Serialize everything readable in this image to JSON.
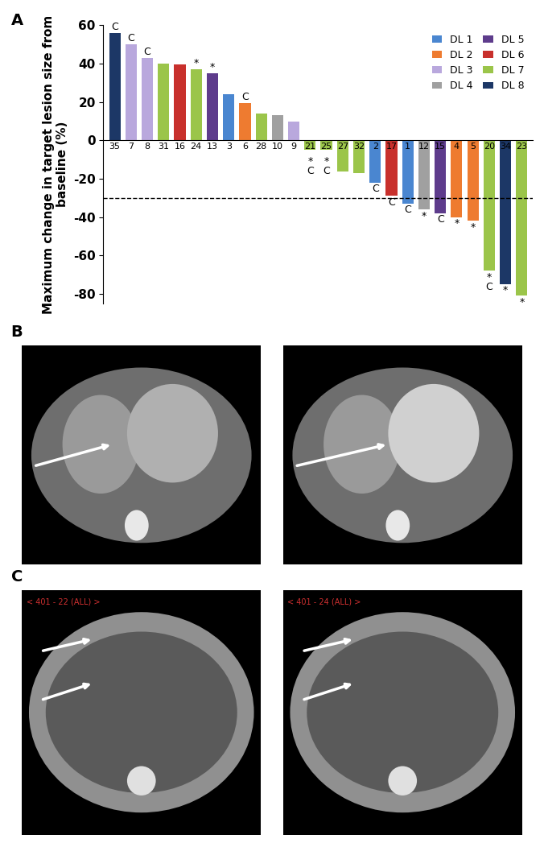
{
  "chart_data": {
    "type": "bar",
    "panel_label": "A",
    "y_label": "Maximum change in target lesion size from baseline (%)",
    "categories": [
      "35",
      "7",
      "8",
      "31",
      "16",
      "24",
      "13",
      "3",
      "6",
      "28",
      "10",
      "9",
      "21",
      "25",
      "27",
      "32",
      "2",
      "17",
      "1",
      "12",
      "15",
      "4",
      "5",
      "20",
      "34",
      "23"
    ],
    "series": [
      {
        "name": "DL 1",
        "color": "#4a86d0",
        "values": [
          null,
          null,
          null,
          null,
          null,
          null,
          null,
          24,
          null,
          null,
          null,
          null,
          null,
          null,
          null,
          null,
          -22,
          null,
          -33,
          null,
          null,
          null,
          null,
          null,
          null,
          null
        ]
      },
      {
        "name": "DL 2",
        "color": "#ee7b30",
        "values": [
          null,
          null,
          null,
          null,
          null,
          null,
          null,
          null,
          19.5,
          null,
          null,
          null,
          null,
          null,
          null,
          null,
          null,
          null,
          null,
          null,
          null,
          -40,
          -42,
          null,
          null,
          null
        ]
      },
      {
        "name": "DL 3",
        "color": "#b9a8dd",
        "values": [
          null,
          50,
          43,
          null,
          null,
          null,
          null,
          null,
          null,
          null,
          null,
          10,
          null,
          null,
          null,
          null,
          null,
          null,
          null,
          null,
          null,
          null,
          null,
          null,
          null,
          null
        ]
      },
      {
        "name": "DL 4",
        "color": "#a0a0a0",
        "values": [
          null,
          null,
          null,
          null,
          null,
          null,
          null,
          null,
          null,
          null,
          13,
          null,
          null,
          null,
          null,
          null,
          null,
          null,
          null,
          -36,
          null,
          null,
          null,
          null,
          null,
          null
        ]
      },
      {
        "name": "DL 5",
        "color": "#5e3c8c",
        "values": [
          null,
          null,
          null,
          null,
          null,
          null,
          35,
          null,
          null,
          null,
          null,
          null,
          null,
          null,
          null,
          null,
          null,
          null,
          null,
          null,
          -38,
          null,
          null,
          null,
          null,
          null
        ]
      },
      {
        "name": "DL 6",
        "color": "#c8302c",
        "values": [
          null,
          null,
          null,
          null,
          39.5,
          null,
          null,
          null,
          null,
          null,
          null,
          null,
          null,
          null,
          null,
          null,
          null,
          -29,
          null,
          null,
          null,
          null,
          null,
          null,
          null,
          null
        ]
      },
      {
        "name": "DL 7",
        "color": "#9bc54a",
        "values": [
          null,
          null,
          null,
          40,
          null,
          37,
          null,
          null,
          null,
          14,
          null,
          null,
          -5,
          -5,
          -16,
          -17,
          null,
          null,
          null,
          null,
          null,
          null,
          null,
          -68,
          null,
          -81
        ]
      },
      {
        "name": "DL 8",
        "color": "#1c3766",
        "values": [
          56,
          null,
          null,
          null,
          null,
          null,
          null,
          null,
          null,
          null,
          null,
          null,
          null,
          null,
          null,
          null,
          null,
          null,
          null,
          null,
          null,
          null,
          null,
          null,
          -75,
          null
        ]
      }
    ],
    "annotations": [
      [
        "C"
      ],
      [
        "C"
      ],
      [
        "C"
      ],
      null,
      null,
      [
        "*"
      ],
      [
        "*"
      ],
      null,
      [
        "C"
      ],
      null,
      null,
      null,
      [
        "*",
        "C"
      ],
      [
        "*",
        "C"
      ],
      null,
      null,
      [
        "C"
      ],
      [
        "C"
      ],
      [
        "C"
      ],
      [
        "*"
      ],
      [
        "C"
      ],
      [
        "*"
      ],
      [
        "*"
      ],
      [
        "*",
        "C"
      ],
      [
        "*"
      ],
      [
        "*"
      ]
    ],
    "threshold": -30,
    "ylim": [
      -85,
      60
    ],
    "yticks": [
      -80,
      -60,
      -40,
      -20,
      0,
      20,
      40,
      60
    ],
    "legend": "upper right",
    "grid": false
  },
  "panels": [
    {
      "label": "B",
      "image_texts": [
        null,
        null
      ]
    },
    {
      "label": "C",
      "image_texts": [
        "< 401 - 22 (ALL) >",
        "< 401 - 24 (ALL) >"
      ]
    }
  ]
}
